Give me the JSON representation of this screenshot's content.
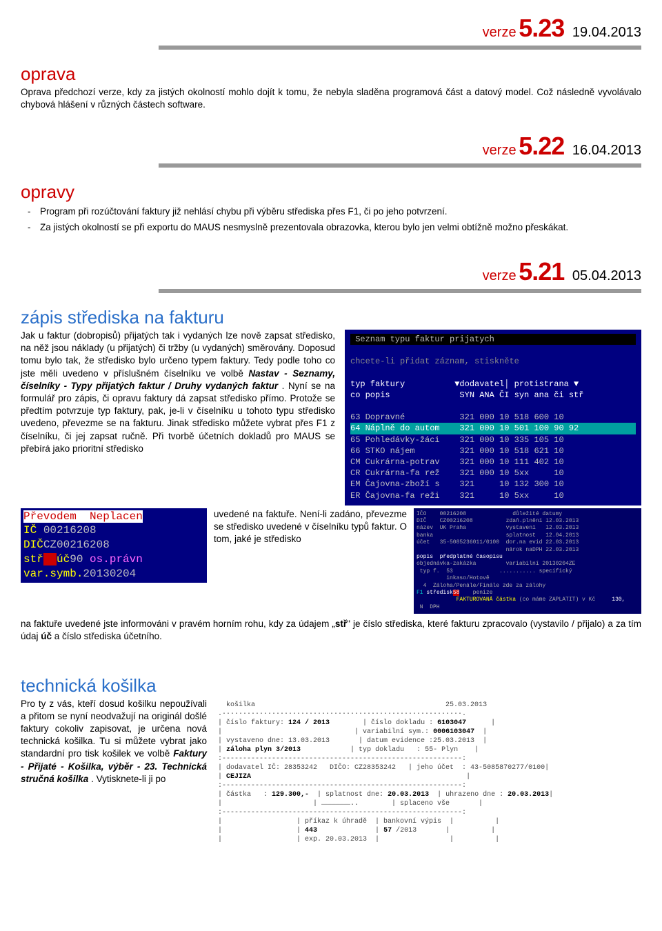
{
  "versions": {
    "v523": {
      "label": "verze",
      "num": "5.23",
      "date": "19.04.2013"
    },
    "v522": {
      "label": "verze",
      "num": "5.22",
      "date": "16.04.2013"
    },
    "v521": {
      "label": "verze",
      "num": "5.21",
      "date": "05.04.2013"
    }
  },
  "section_oprava": {
    "title": "oprava",
    "text": "Oprava předchozí verze, kdy za jistých okolností mohlo dojít k tomu, že nebyla sladěna programová část a datový model. Což následně vyvolávalo chybová hlášení v různých částech software."
  },
  "section_opravy": {
    "title": "opravy",
    "items": [
      "Program při rozúčtování faktury již nehlásí chybu při výběru střediska přes F1, či po jeho potvrzení.",
      "Za jistých okolností se při exportu do MAUS nesmyslně prezentovala obrazovka, kterou bylo jen velmi obtížně možno přeskákat."
    ]
  },
  "section_zapis": {
    "title": "zápis střediska na fakturu",
    "para1": "Jak u faktur (dobropisů) přijatých tak i vydaných lze nově zapsat středisko, na něž jsou náklady (u přijatých) či tržby (u vydaných) směrovány. Doposud tomu bylo tak, že středisko bylo určeno typem faktury. Tedy podle toho co jste měli uvedeno v příslušném číselníku ve volbě ",
    "italic1": "Nastav - Seznamy, číselníky - Typy přijatých faktur / Druhy vydaných faktur",
    "para1b": ". Nyní se na formulář pro zápis, či opravu faktury dá zapsat středisko přímo. Protože se předtím potvrzuje typ faktury, pak, je-li v číselníku u tohoto typu středisko uvedeno, převezme se na fakturu. Jinak středisko můžete vybrat přes F1 z číselníku, či jej zapsat ručně. Při tvorbě účetních dokladů pro MAUS se přebírá jako prioritní středisko",
    "mid": "uvedené na faktuře. Není-li zadáno, převezme se středisko uvedené v číselníku typů faktur. O tom, jaké je středisko",
    "para2a": "na faktuře uvedené jste informováni v pravém horním rohu, kdy za údajem „",
    "bold_str": "stř",
    "para2b": "\" je číslo střediska, které fakturu zpracovalo (vystavilo / přijalo) a za tím údaj ",
    "bold_uc": "úč",
    "para2c": " a číslo střediska účetního."
  },
  "terminal": {
    "title": "Seznam typu faktur prijatych",
    "hint": "chcete-li přidat záznam, stiskněte <F3>",
    "header1": "typ faktury          ▼dodavatel│ protistrana ▼",
    "header2": "co popis              SYN ANA ČI syn ana či stř",
    "rows": [
      "63 Dopravné           321 000 10 518 600 10",
      "64 Náplně do autom    321 000 10 501 100 90 92",
      "65 Pohledávky-žáci    321 000 10 335 105 10",
      "66 STKO nájem         321 000 10 518 621 10",
      "CM Cukrárna-potrav    321 000 10 111 402 10",
      "CR Cukrárna-fa rež    321 000 10 5xx     10",
      "EM Čajovna-zboží s    321     10 132 300 10",
      "ER Čajovna-fa reži    321     10 5xx     10"
    ],
    "highlight_index": 1
  },
  "neplace": {
    "line1": "Převodem  Neplacen",
    "line2": "IČ 00216208",
    "line3": "DIČCZ00216208",
    "line4": "stř úč90 os.právn",
    "line5": "var.symb.20130204"
  },
  "detail": {
    "lines": [
      "IČO    00216208              důležité datumy",
      "DIČ    CZ00216208          zdaň.plnění 12.03.2013",
      "název  UK Praha            vystavení   12.03.2013",
      "banka                      splatnost   12.04.2013",
      "účet   35-5085236011/0100  dor.na evid 22.03.2013",
      "                           nárok naDPH 22.03.2013",
      "popis  předplatné časopisu",
      "objednávka-zakázka         variabilní 20130204ZE",
      " typ f.  53              ........... specifický",
      "         inkaso/Hotově",
      "  4  Záloha/Penále/Finále zde za zálohy",
      "F1 středisk58    penize",
      "            FAKTUROVANÁ částka (co máme ZAPLATIT) v Kč     130,",
      " N  DPH"
    ]
  },
  "section_kosilka": {
    "title": "technická košilka",
    "para1": "Pro ty z vás, kteří dosud košilku nepoužívali a přitom se nyní neodvažují na originál došlé faktury cokoliv zapisovat, je určena nová technická košilka. Tu si můžete vybrat jako standardní pro tisk košilek ve volbě ",
    "italic1": "Faktury - Přijaté - Košilka, výběr - 23. Technická stručná košilka",
    "para1b": ". Vytisknete-li ji po"
  },
  "kosilka": {
    "header_left": "košilka",
    "header_right": "25.03.2013",
    "l1a": "číslo faktury:",
    "l1av": "124 / 2013",
    "l1b": "číslo dokladu :",
    "l1bv": "6103047",
    "l2a": "vystaveno dne:",
    "l2av": "13.03.2013",
    "l2b": "variabilní sym.:",
    "l2bv": "0006103047",
    "l3a": "záloha plyn 3/2013",
    "l3b": "datum evidence :",
    "l3bv": "25.03.2013",
    "l4b": "typ dokladu   :",
    "l4bv": "55- Plyn",
    "l5a": "dodavatel IČ:",
    "l5av": "28353242",
    "l5m": "DIČO: CZ28353242",
    "l5b": "jeho účet  :",
    "l5bv": "43-5085870277/0100",
    "l6a": "CEJIZA",
    "l7a": "částka   :",
    "l7av": "129.300,-",
    "l7b": "splatnost dne:",
    "l7bv": "20.03.2013",
    "l7c": "uhrazeno dne :",
    "l7cv": "20.03.2013",
    "l8b": "…………………..",
    "l8c": "splaceno vše",
    "l9a": "příkaz k úhradě",
    "l9b": "bankovní výpis",
    "l10a": "443",
    "l10b": "57",
    "l10bv": "/2013",
    "l11a": "exp. 20.03.2013"
  }
}
